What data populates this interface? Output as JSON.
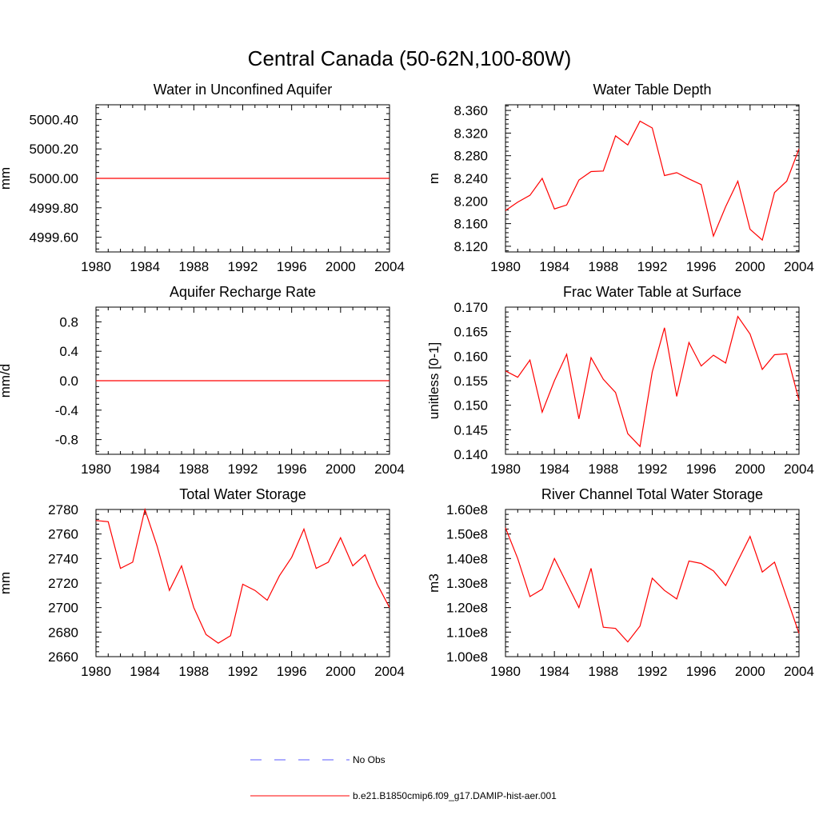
{
  "main_title": "Central Canada (50-62N,100-80W)",
  "legend": {
    "entries": [
      {
        "label": "No Obs",
        "color": "#5a5aff",
        "style": "dashed"
      },
      {
        "label": "b.e21.B1850cmip6.f09_g17.DAMIP-hist-aer.001",
        "color": "#ff0000",
        "style": "solid"
      }
    ]
  },
  "chart_data": [
    {
      "type": "line",
      "title": "Water in Unconfined Aquifer",
      "xlabel": "",
      "ylabel": "mm",
      "xlim": [
        1980,
        2004
      ],
      "ylim": [
        4999.5,
        5000.5
      ],
      "xticks": [
        "1980",
        "1984",
        "1988",
        "1992",
        "1996",
        "2000",
        "2004"
      ],
      "yticks": [
        {
          "v": 4999.6,
          "label": "4999.60"
        },
        {
          "v": 4999.8,
          "label": "4999.80"
        },
        {
          "v": 5000.0,
          "label": "5000.00"
        },
        {
          "v": 5000.2,
          "label": "5000.20"
        },
        {
          "v": 5000.4,
          "label": "5000.40"
        }
      ],
      "series": [
        {
          "name": "b.e21.B1850cmip6.f09_g17.DAMIP-hist-aer.001",
          "color": "#ff0000",
          "x": [
            1980,
            1981,
            1982,
            1983,
            1984,
            1985,
            1986,
            1987,
            1988,
            1989,
            1990,
            1991,
            1992,
            1993,
            1994,
            1995,
            1996,
            1997,
            1998,
            1999,
            2000,
            2001,
            2002,
            2003,
            2004
          ],
          "y": [
            5000.0,
            5000.0,
            5000.0,
            5000.0,
            5000.0,
            5000.0,
            5000.0,
            5000.0,
            5000.0,
            5000.0,
            5000.0,
            5000.0,
            5000.0,
            5000.0,
            5000.0,
            5000.0,
            5000.0,
            5000.0,
            5000.0,
            5000.0,
            5000.0,
            5000.0,
            5000.0,
            5000.0,
            5000.0
          ]
        }
      ]
    },
    {
      "type": "line",
      "title": "Water Table Depth",
      "xlabel": "",
      "ylabel": "m",
      "xlim": [
        1980,
        2004
      ],
      "ylim": [
        8.11,
        8.37
      ],
      "xticks": [
        "1980",
        "1984",
        "1988",
        "1992",
        "1996",
        "2000",
        "2004"
      ],
      "yticks": [
        {
          "v": 8.12,
          "label": "8.120"
        },
        {
          "v": 8.16,
          "label": "8.160"
        },
        {
          "v": 8.2,
          "label": "8.200"
        },
        {
          "v": 8.24,
          "label": "8.240"
        },
        {
          "v": 8.28,
          "label": "8.280"
        },
        {
          "v": 8.32,
          "label": "8.320"
        },
        {
          "v": 8.36,
          "label": "8.360"
        }
      ],
      "series": [
        {
          "name": "b.e21.B1850cmip6.f09_g17.DAMIP-hist-aer.001",
          "color": "#ff0000",
          "x": [
            1980,
            1981,
            1982,
            1983,
            1984,
            1985,
            1986,
            1987,
            1988,
            1989,
            1990,
            1991,
            1992,
            1993,
            1994,
            1995,
            1996,
            1997,
            1998,
            1999,
            2000,
            2001,
            2002,
            2003,
            2004
          ],
          "y": [
            8.183,
            8.198,
            8.21,
            8.24,
            8.186,
            8.193,
            8.237,
            8.252,
            8.253,
            8.315,
            8.299,
            8.341,
            8.329,
            8.245,
            8.25,
            8.239,
            8.229,
            8.138,
            8.19,
            8.235,
            8.15,
            8.131,
            8.215,
            8.235,
            8.292
          ]
        }
      ]
    },
    {
      "type": "line",
      "title": "Aquifer Recharge Rate",
      "xlabel": "",
      "ylabel": "mm/d",
      "xlim": [
        1980,
        2004
      ],
      "ylim": [
        -1.0,
        1.0
      ],
      "xticks": [
        "1980",
        "1984",
        "1988",
        "1992",
        "1996",
        "2000",
        "2004"
      ],
      "yticks": [
        {
          "v": -0.8,
          "label": "-0.8"
        },
        {
          "v": -0.4,
          "label": "-0.4"
        },
        {
          "v": 0.0,
          "label": "0.0"
        },
        {
          "v": 0.4,
          "label": "0.4"
        },
        {
          "v": 0.8,
          "label": "0.8"
        }
      ],
      "series": [
        {
          "name": "b.e21.B1850cmip6.f09_g17.DAMIP-hist-aer.001",
          "color": "#ff0000",
          "x": [
            1980,
            1981,
            1982,
            1983,
            1984,
            1985,
            1986,
            1987,
            1988,
            1989,
            1990,
            1991,
            1992,
            1993,
            1994,
            1995,
            1996,
            1997,
            1998,
            1999,
            2000,
            2001,
            2002,
            2003,
            2004
          ],
          "y": [
            0.0,
            0.0,
            0.0,
            0.0,
            0.0,
            0.0,
            0.0,
            0.0,
            0.0,
            0.0,
            0.0,
            0.0,
            0.0,
            0.0,
            0.0,
            0.0,
            0.0,
            0.0,
            0.0,
            0.0,
            0.0,
            0.0,
            0.0,
            0.0,
            0.0
          ]
        }
      ]
    },
    {
      "type": "line",
      "title": "Frac Water Table at Surface",
      "xlabel": "",
      "ylabel": "unitless [0-1]",
      "xlim": [
        1980,
        2004
      ],
      "ylim": [
        0.14,
        0.17
      ],
      "xticks": [
        "1980",
        "1984",
        "1988",
        "1992",
        "1996",
        "2000",
        "2004"
      ],
      "yticks": [
        {
          "v": 0.14,
          "label": "0.140"
        },
        {
          "v": 0.145,
          "label": "0.145"
        },
        {
          "v": 0.15,
          "label": "0.150"
        },
        {
          "v": 0.155,
          "label": "0.155"
        },
        {
          "v": 0.16,
          "label": "0.160"
        },
        {
          "v": 0.165,
          "label": "0.165"
        },
        {
          "v": 0.17,
          "label": "0.170"
        }
      ],
      "series": [
        {
          "name": "b.e21.B1850cmip6.f09_g17.DAMIP-hist-aer.001",
          "color": "#ff0000",
          "x": [
            1980,
            1981,
            1982,
            1983,
            1984,
            1985,
            1986,
            1987,
            1988,
            1989,
            1990,
            1991,
            1992,
            1993,
            1994,
            1995,
            1996,
            1997,
            1998,
            1999,
            2000,
            2001,
            2002,
            2003,
            2004
          ],
          "y": [
            0.157,
            0.1557,
            0.1592,
            0.1486,
            0.155,
            0.1604,
            0.1472,
            0.1597,
            0.1553,
            0.1526,
            0.1442,
            0.1416,
            0.1568,
            0.1658,
            0.1518,
            0.1628,
            0.158,
            0.1602,
            0.1586,
            0.1681,
            0.1645,
            0.1573,
            0.1603,
            0.1605,
            0.151
          ]
        }
      ]
    },
    {
      "type": "line",
      "title": "Total Water Storage",
      "xlabel": "",
      "ylabel": "mm",
      "xlim": [
        1980,
        2004
      ],
      "ylim": [
        2660,
        2780
      ],
      "xticks": [
        "1980",
        "1984",
        "1988",
        "1992",
        "1996",
        "2000",
        "2004"
      ],
      "yticks": [
        {
          "v": 2660,
          "label": "2660"
        },
        {
          "v": 2680,
          "label": "2680"
        },
        {
          "v": 2700,
          "label": "2700"
        },
        {
          "v": 2720,
          "label": "2720"
        },
        {
          "v": 2740,
          "label": "2740"
        },
        {
          "v": 2760,
          "label": "2760"
        },
        {
          "v": 2780,
          "label": "2780"
        }
      ],
      "series": [
        {
          "name": "b.e21.B1850cmip6.f09_g17.DAMIP-hist-aer.001",
          "color": "#ff0000",
          "x": [
            1980,
            1981,
            1982,
            1983,
            1984,
            1985,
            1986,
            1987,
            1988,
            1989,
            1990,
            1991,
            1992,
            1993,
            1994,
            1995,
            1996,
            1997,
            1998,
            1999,
            2000,
            2001,
            2002,
            2003,
            2004
          ],
          "y": [
            2771,
            2770,
            2732,
            2737,
            2780,
            2750,
            2714,
            2734,
            2700,
            2678,
            2671,
            2677,
            2719,
            2714,
            2706,
            2726,
            2741,
            2764,
            2732,
            2737,
            2757,
            2734,
            2743,
            2719,
            2700
          ]
        }
      ]
    },
    {
      "type": "line",
      "title": "River Channel Total Water Storage",
      "xlabel": "",
      "ylabel": "m3",
      "xlim": [
        1980,
        2004
      ],
      "ylim": [
        100000000,
        160000000
      ],
      "xticks": [
        "1980",
        "1984",
        "1988",
        "1992",
        "1996",
        "2000",
        "2004"
      ],
      "yticks": [
        {
          "v": 100000000,
          "label": "1.00e8"
        },
        {
          "v": 110000000,
          "label": "1.10e8"
        },
        {
          "v": 120000000,
          "label": "1.20e8"
        },
        {
          "v": 130000000,
          "label": "1.30e8"
        },
        {
          "v": 140000000,
          "label": "1.40e8"
        },
        {
          "v": 150000000,
          "label": "1.50e8"
        },
        {
          "v": 160000000,
          "label": "1.60e8"
        }
      ],
      "series": [
        {
          "name": "b.e21.B1850cmip6.f09_g17.DAMIP-hist-aer.001",
          "color": "#ff0000",
          "x": [
            1980,
            1981,
            1982,
            1983,
            1984,
            1985,
            1986,
            1987,
            1988,
            1989,
            1990,
            1991,
            1992,
            1993,
            1994,
            1995,
            1996,
            1997,
            1998,
            1999,
            2000,
            2001,
            2002,
            2003,
            2004
          ],
          "y": [
            152500000,
            140000000,
            124500000,
            127500000,
            140000000,
            130000000,
            120000000,
            136000000,
            112000000,
            111500000,
            106000000,
            112500000,
            132000000,
            127000000,
            123500000,
            139000000,
            138000000,
            135000000,
            129000000,
            139000000,
            149000000,
            134500000,
            138500000,
            124000000,
            109500000
          ]
        }
      ]
    }
  ]
}
